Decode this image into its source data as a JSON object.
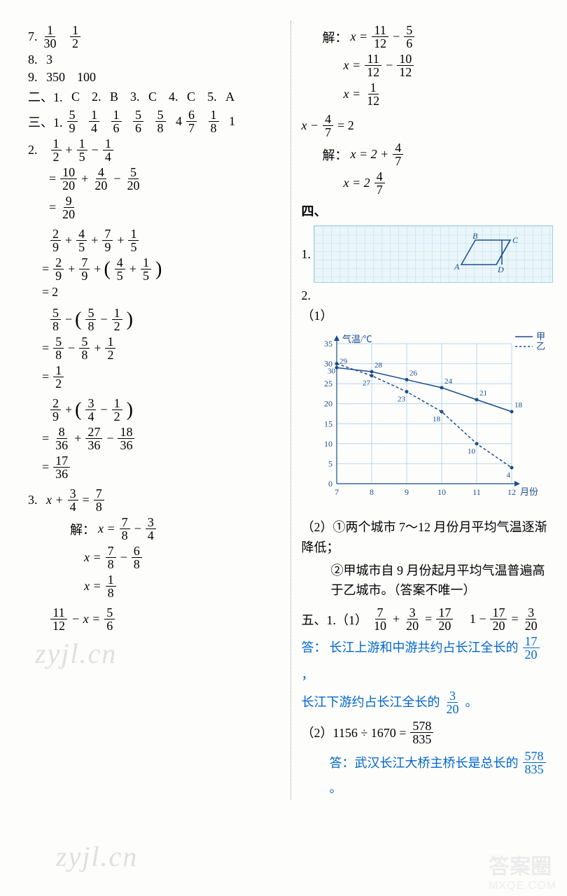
{
  "left": {
    "l7": [
      "7.",
      "1",
      "30",
      "1",
      "2"
    ],
    "l8": [
      "8.",
      "3"
    ],
    "l9": [
      "9.",
      "350",
      "100"
    ],
    "sec2": [
      "二、1.",
      "C",
      "2.",
      "B",
      "3.",
      "C",
      "4.",
      "C",
      "5.",
      "A"
    ],
    "sec3_1": {
      "label": "三、1.",
      "fracs": [
        [
          "5",
          "9"
        ],
        [
          "1",
          "4"
        ],
        [
          "1",
          "6"
        ],
        [
          "5",
          "6"
        ],
        [
          "5",
          "8"
        ]
      ],
      "mixed": "4",
      "mixedfrac": [
        "6",
        "7"
      ],
      "frac2": [
        "1",
        "8"
      ],
      "tail": "1"
    },
    "p2_label": "2.",
    "p2_a": {
      "terms": [
        [
          "1",
          "2"
        ],
        "+",
        [
          "1",
          "5"
        ],
        "−",
        [
          "1",
          "4"
        ]
      ]
    },
    "p2_a1": {
      "pre": "=",
      "terms": [
        [
          "10",
          "20"
        ],
        "+",
        [
          "4",
          "20"
        ],
        "−",
        [
          "5",
          "20"
        ]
      ]
    },
    "p2_a2": {
      "pre": "=",
      "terms": [
        [
          "9",
          "20"
        ]
      ]
    },
    "p2_b": {
      "terms": [
        [
          "2",
          "9"
        ],
        "+",
        [
          "4",
          "5"
        ],
        "+",
        [
          "7",
          "9"
        ],
        "+",
        [
          "1",
          "5"
        ]
      ]
    },
    "p2_b1": {
      "pre": "=",
      "terms": [
        [
          "2",
          "9"
        ],
        "+",
        [
          "7",
          "9"
        ],
        "+",
        "(",
        [
          "4",
          "5"
        ],
        "+",
        [
          "1",
          "5"
        ],
        ")"
      ]
    },
    "p2_b2": {
      "pre": "=",
      "text": "2"
    },
    "p2_c": {
      "terms": [
        [
          "5",
          "8"
        ],
        "−",
        "(",
        [
          "5",
          "8"
        ],
        "−",
        [
          "1",
          "2"
        ],
        ")"
      ]
    },
    "p2_c1": {
      "pre": "=",
      "terms": [
        [
          "5",
          "8"
        ],
        "−",
        [
          "5",
          "8"
        ],
        "+",
        [
          "1",
          "2"
        ]
      ]
    },
    "p2_c2": {
      "pre": "=",
      "terms": [
        [
          "1",
          "2"
        ]
      ]
    },
    "p2_d": {
      "terms": [
        [
          "2",
          "9"
        ],
        "+",
        "(",
        [
          "3",
          "4"
        ],
        "−",
        [
          "1",
          "2"
        ],
        ")"
      ]
    },
    "p2_d1": {
      "pre": "=",
      "terms": [
        [
          "8",
          "36"
        ],
        "+",
        [
          "27",
          "36"
        ],
        "−",
        [
          "18",
          "36"
        ]
      ]
    },
    "p2_d2": {
      "pre": "=",
      "terms": [
        [
          "17",
          "36"
        ]
      ]
    },
    "p3_label": "3.",
    "p3_a": {
      "lhs": "x +",
      "f1": [
        "3",
        "4"
      ],
      "mid": "=",
      "f2": [
        "7",
        "8"
      ]
    },
    "p3_sol": "解：",
    "p3_a1": {
      "lhs": "x =",
      "f1": [
        "7",
        "8"
      ],
      "mid": "−",
      "f2": [
        "3",
        "4"
      ]
    },
    "p3_a2": {
      "lhs": "x =",
      "f1": [
        "7",
        "8"
      ],
      "mid": "−",
      "f2": [
        "6",
        "8"
      ]
    },
    "p3_a3": {
      "lhs": "x =",
      "f1": [
        "1",
        "8"
      ]
    },
    "p3_b": {
      "f1": [
        "11",
        "12"
      ],
      "mid": "− x =",
      "f2": [
        "5",
        "6"
      ]
    }
  },
  "right": {
    "r1_sol": "解：",
    "r1_a": {
      "lhs": "x =",
      "f1": [
        "11",
        "12"
      ],
      "mid": "−",
      "f2": [
        "5",
        "6"
      ]
    },
    "r1_b": {
      "lhs": "x =",
      "f1": [
        "11",
        "12"
      ],
      "mid": "−",
      "f2": [
        "10",
        "12"
      ]
    },
    "r1_c": {
      "lhs": "x =",
      "f1": [
        "1",
        "12"
      ]
    },
    "r2_eq": {
      "lhs": "x −",
      "f1": [
        "4",
        "7"
      ],
      "tail": "= 2"
    },
    "r2_sol": "解：",
    "r2_a": {
      "lhs": "x = 2 +",
      "f1": [
        "4",
        "7"
      ]
    },
    "r2_b": {
      "lhs": "x = 2",
      "f1": [
        "4",
        "7"
      ]
    },
    "sec4": "四、",
    "q1": "1.",
    "shape_labels": {
      "A": "A",
      "B": "B",
      "C": "C",
      "D": "D"
    },
    "q2": "2.",
    "q2_1": "（1）",
    "chart": {
      "ylabel": "气温/℃",
      "xlabel": "月份",
      "legend": {
        "a": "甲",
        "b": "乙"
      },
      "yticks": [
        0,
        5,
        10,
        15,
        20,
        25,
        30,
        35
      ],
      "xticks": [
        7,
        8,
        9,
        10,
        11,
        12
      ],
      "series_a": {
        "label": "甲",
        "data": [
          29,
          28,
          26,
          24,
          21,
          18
        ],
        "color": "#1a4d8f"
      },
      "series_b": {
        "label": "乙",
        "data": [
          30,
          27,
          23,
          18,
          10,
          4
        ],
        "color": "#1a4d8f"
      },
      "grid_color": "#9ec8e8",
      "bg": "#ffffff"
    },
    "q2_2a": "（2）①两个城市 7～12 月份月平均气温逐渐降低；",
    "q2_2b": "②甲城市自 9 月份起月平均气温普遍高于乙城市。（答案不唯一）",
    "sec5": "五、1.（1）",
    "s5_eq1": {
      "f1": [
        "7",
        "10"
      ],
      "p": "+",
      "f2": [
        "3",
        "20"
      ],
      "e": "=",
      "f3": [
        "17",
        "20"
      ]
    },
    "s5_eq2": {
      "pre": "1 −",
      "f1": [
        "17",
        "20"
      ],
      "e": "=",
      "f2": [
        "3",
        "20"
      ]
    },
    "s5_ans_label": "答：",
    "s5_ans1a": "长江上游和中游共约占长江全长的",
    "s5_ans1f": [
      "17",
      "20"
    ],
    "s5_ans1b": "，",
    "s5_ans2a": "长江下游约占长江全长的",
    "s5_ans2f": [
      "3",
      "20"
    ],
    "s5_ans2b": "。",
    "s5_2": "（2）1156 ÷ 1670 =",
    "s5_2f": [
      "578",
      "835"
    ],
    "s5_2ans": "答：武汉长江大桥主桥长是总长的",
    "s5_2ansf": [
      "578",
      "835"
    ],
    "s5_2tail": "。"
  },
  "watermark": "zyjl.cn",
  "footer": {
    "circle": "答案圈",
    "site": "MXQE.COM"
  }
}
